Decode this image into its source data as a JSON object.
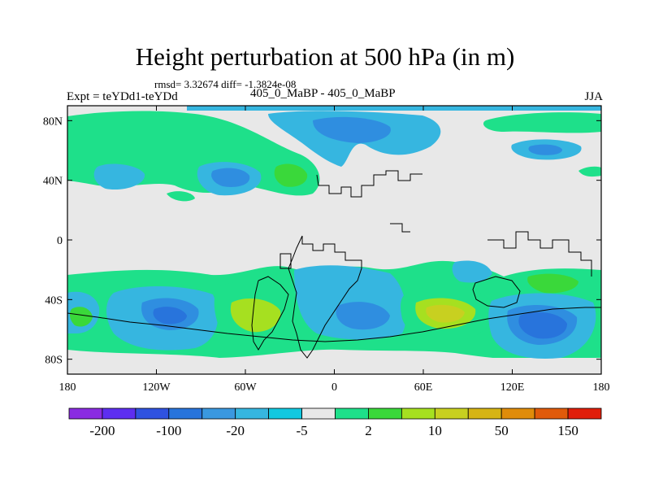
{
  "title": "Height perturbation at 500 hPa (in m)",
  "subtitle": "rmsd= 3.32674 diff= -1.3824e-08",
  "left_label": "Expt = teYDd1-teYDd",
  "center_label": "405_0_MaBP - 405_0_MaBP",
  "right_label": "JJA",
  "lat_ticks": [
    "80N",
    "40N",
    "0",
    "40S",
    "80S"
  ],
  "lat_values": [
    80,
    40,
    0,
    -40,
    -80
  ],
  "lon_ticks": [
    "180",
    "120W",
    "60W",
    "0",
    "60E",
    "120E",
    "180"
  ],
  "lon_values": [
    -180,
    -120,
    -60,
    0,
    60,
    120,
    180
  ],
  "colorbar": {
    "colors": [
      "#8a2be2",
      "#5d2ef0",
      "#2f52e0",
      "#2874dc",
      "#3a98e0",
      "#36b6e0",
      "#12c8e0",
      "#e8e8e8",
      "#1ee08a",
      "#3ad83a",
      "#a6e020",
      "#c8d020",
      "#d6b414",
      "#e08c0a",
      "#e05a0a",
      "#e01e0a"
    ],
    "labels": [
      "-200",
      "-100",
      "-20",
      "-5",
      "2",
      "10",
      "50",
      "150"
    ]
  },
  "colors": {
    "land_background": "#e8e8e8",
    "coast": "#000000"
  }
}
